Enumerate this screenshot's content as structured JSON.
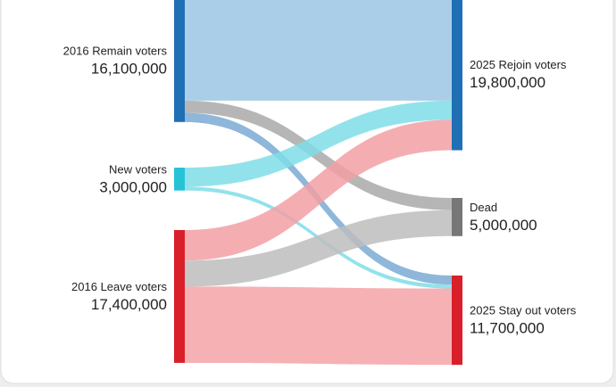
{
  "chart_data": {
    "type": "sankey",
    "nodes": [
      {
        "label": "2016 Remain voters",
        "value": 16100000,
        "value_label": "16,100,000",
        "color": "#1f6fb5"
      },
      {
        "label": "New voters",
        "value": 3000000,
        "value_label": "3,000,000",
        "color": "#26c3d6"
      },
      {
        "label": "2016 Leave voters",
        "value": 17400000,
        "value_label": "17,400,000",
        "color": "#d9202a"
      },
      {
        "label": "2025 Rejoin voters",
        "value": 19800000,
        "value_label": "19,800,000",
        "color": "#1f6fb5"
      },
      {
        "label": "Dead",
        "value": 5000000,
        "value_label": "5,000,000",
        "color": "#777777"
      },
      {
        "label": "2025 Stay out voters",
        "value": 11700000,
        "value_label": "11,700,000",
        "color": "#d9202a"
      }
    ],
    "links": [
      {
        "source": 0,
        "target": 3,
        "value": 13300000,
        "color": "#9cc6e4"
      },
      {
        "source": 0,
        "target": 4,
        "value": 1600000,
        "color": "#a9a9a9"
      },
      {
        "source": 0,
        "target": 5,
        "value": 1200000,
        "color": "#7aaad4"
      },
      {
        "source": 1,
        "target": 3,
        "value": 2500000,
        "color": "#7fdde8"
      },
      {
        "source": 1,
        "target": 5,
        "value": 500000,
        "color": "#7fdde8"
      },
      {
        "source": 2,
        "target": 3,
        "value": 4000000,
        "color": "#f2a0a4"
      },
      {
        "source": 2,
        "target": 4,
        "value": 3400000,
        "color": "#bdbdbd"
      },
      {
        "source": 2,
        "target": 5,
        "value": 10000000,
        "color": "#f5a3a7"
      }
    ]
  }
}
